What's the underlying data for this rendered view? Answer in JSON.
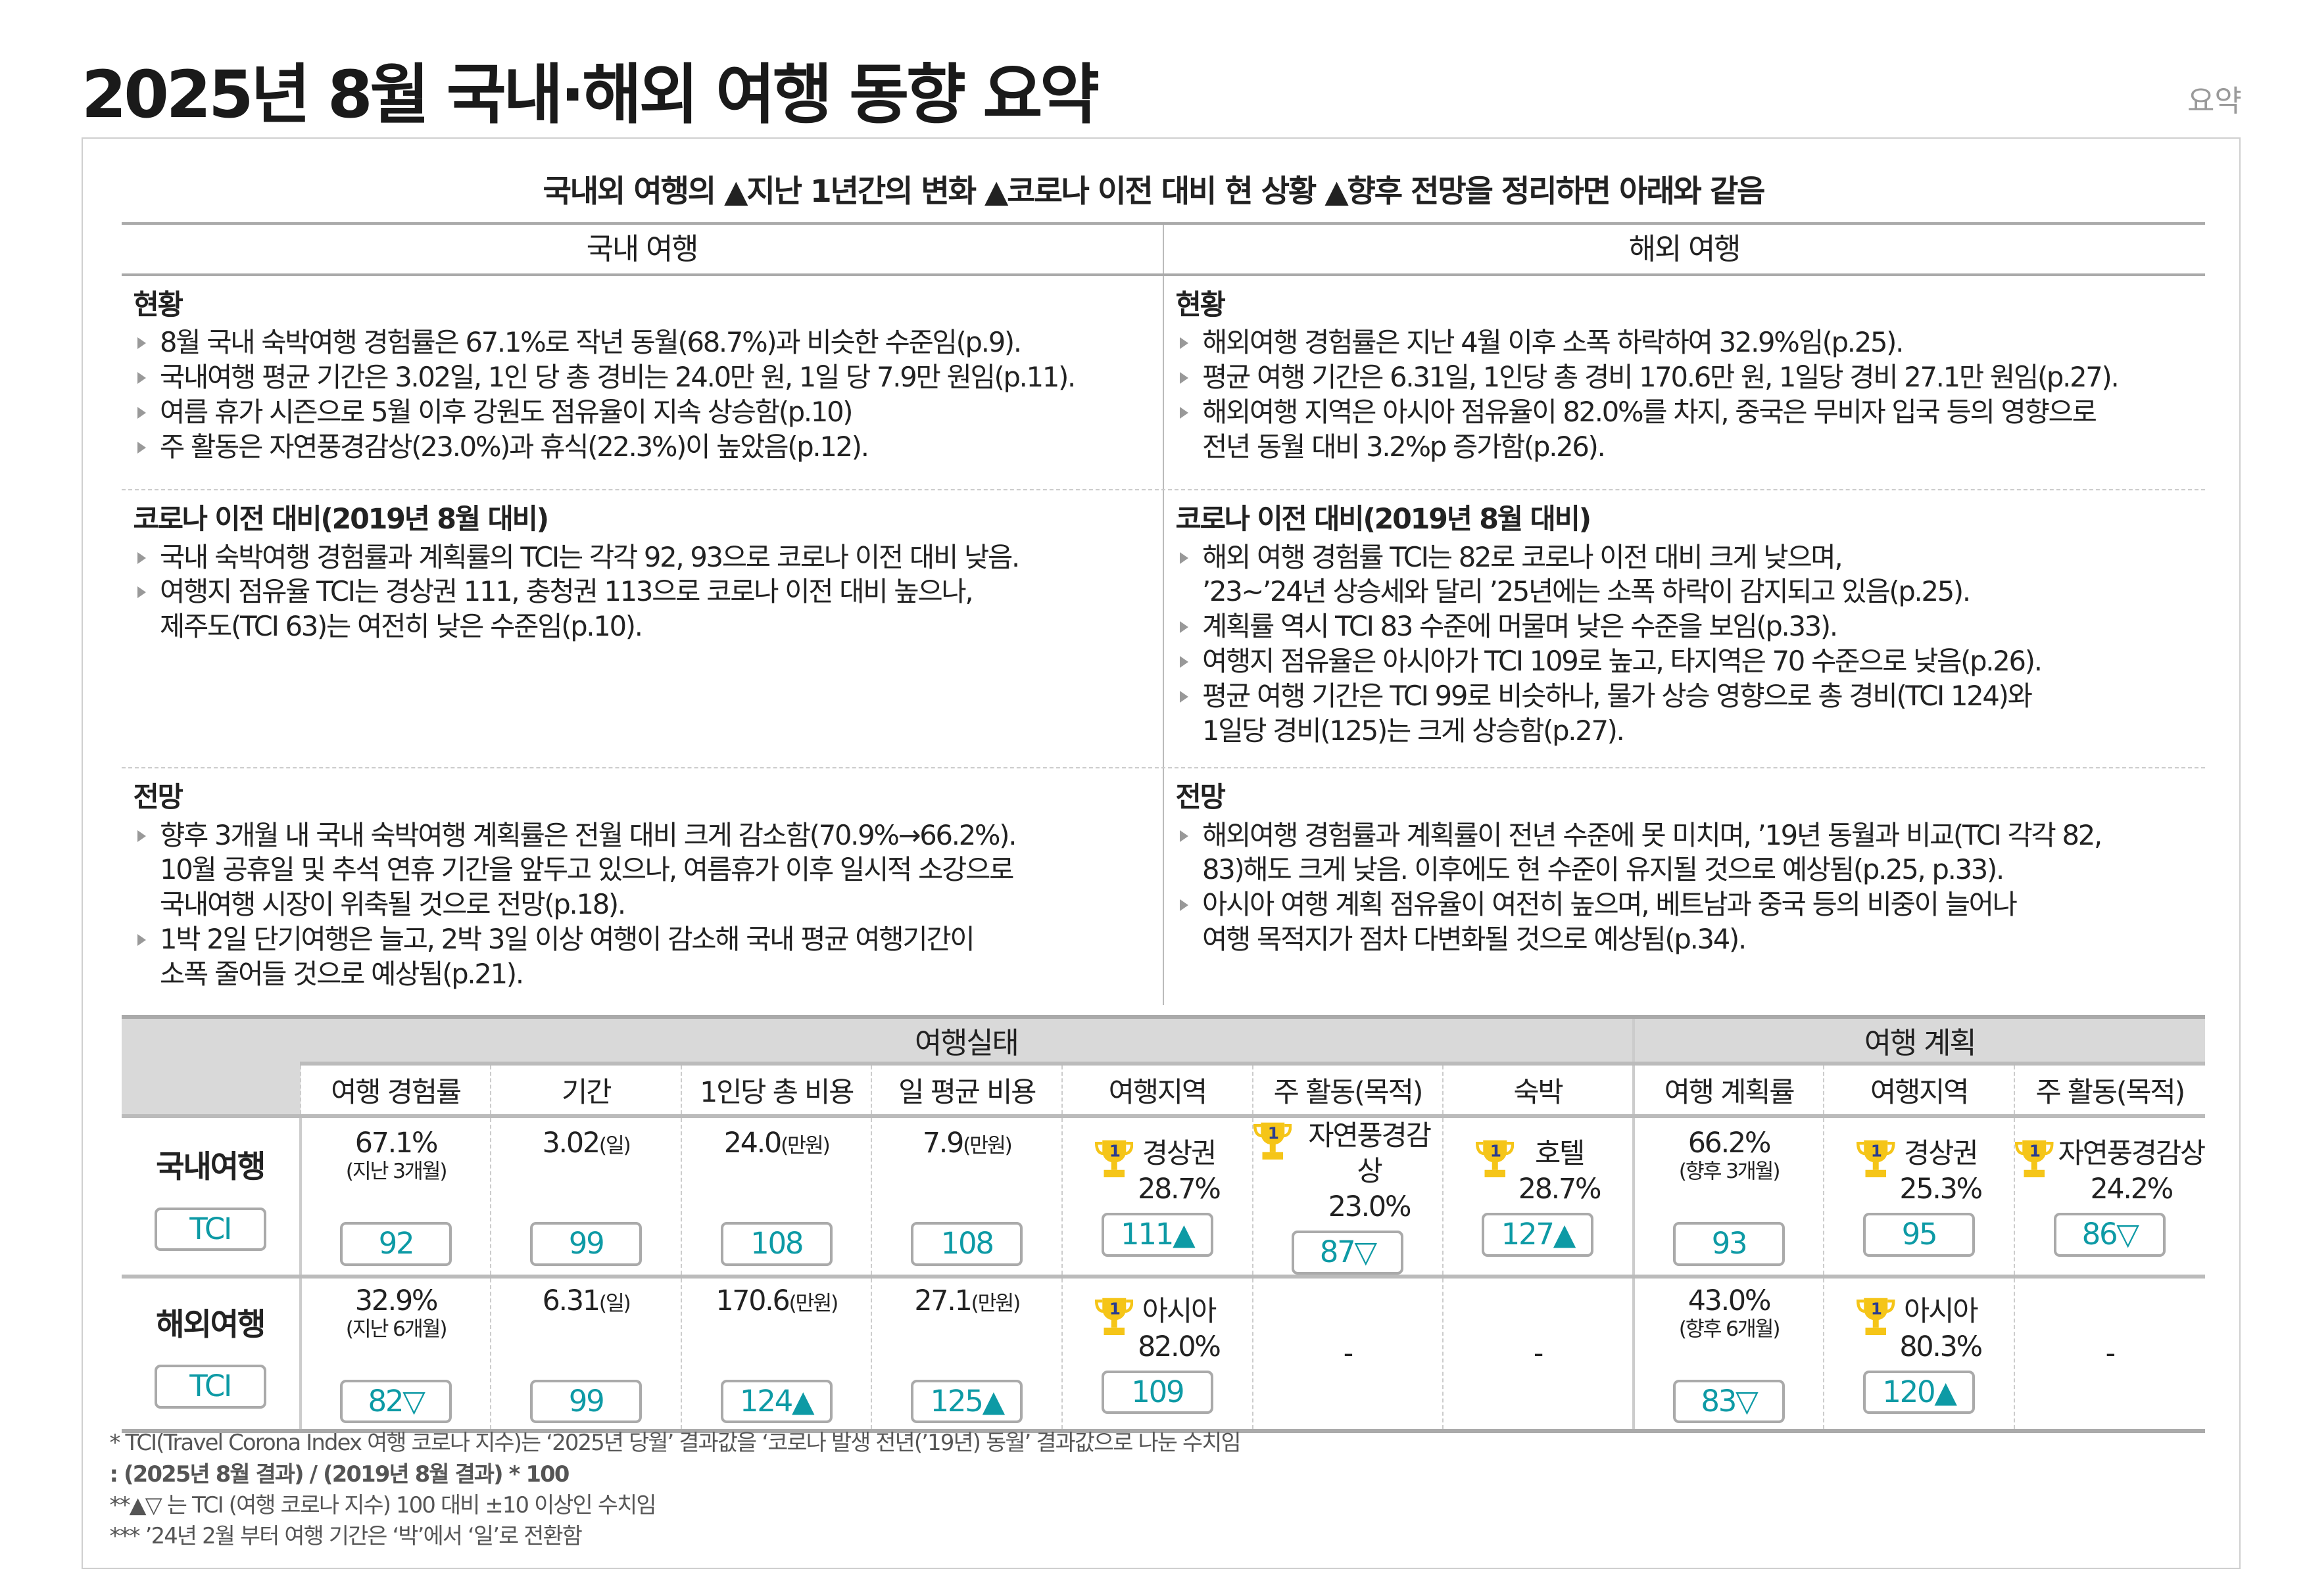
{
  "title": "2025년 8월 국내·해외 여행 동향 요약",
  "tag": "요약",
  "subtitle": "국내외 여행의 ▲지난 1년간의 변화 ▲코로나 이전 대비 현 상황 ▲향후 전망을 정리하면 아래와 같음",
  "compare": {
    "headers": [
      "국내 여행",
      "해외 여행"
    ],
    "sections": [
      {
        "domestic": {
          "heading": "현황",
          "bullets": [
            "8월 국내 숙박여행 경험률은 67.1%로 작년 동월(68.7%)과 비슷한 수준임(p.9).",
            "국내여행 평균 기간은 3.02일, 1인 당 총 경비는 24.0만 원, 1일 당 7.9만 원임(p.11).",
            "여름 휴가 시즌으로 5월 이후 강원도 점유율이 지속 상승함(p.10)",
            "주 활동은 자연풍경감상(23.0%)과 휴식(22.3%)이 높았음(p.12)."
          ]
        },
        "overseas": {
          "heading": "현황",
          "bullets": [
            "해외여행 경험률은 지난 4월 이후 소폭 하락하여 32.9%임(p.25).",
            "평균 여행 기간은 6.31일, 1인당 총 경비 170.6만 원, 1일당 경비 27.1만 원임(p.27).",
            "해외여행 지역은 아시아 점유율이 82.0%를 차지, 중국은 무비자 입국 등의 영향으로\n전년 동월 대비 3.2%p 증가함(p.26)."
          ]
        }
      },
      {
        "domestic": {
          "heading": "코로나 이전 대비(2019년 8월 대비)",
          "bullets": [
            "국내 숙박여행 경험률과 계획률의 TCI는 각각 92, 93으로 코로나 이전 대비 낮음.",
            "여행지 점유율 TCI는 경상권 111, 충청권 113으로 코로나 이전 대비 높으나,\n제주도(TCI 63)는 여전히 낮은 수준임(p.10)."
          ]
        },
        "overseas": {
          "heading": "코로나 이전 대비(2019년 8월 대비)",
          "bullets": [
            "해외 여행 경험률 TCI는 82로 코로나 이전 대비 크게 낮으며,\n’23~’24년 상승세와 달리 ’25년에는 소폭 하락이 감지되고 있음(p.25).",
            "계획률 역시 TCI 83 수준에 머물며 낮은 수준을 보임(p.33).",
            "여행지 점유율은 아시아가 TCI 109로 높고, 타지역은 70 수준으로 낮음(p.26).",
            "평균 여행 기간은 TCI 99로 비슷하나, 물가 상승 영향으로 총 경비(TCI 124)와\n1일당 경비(125)는 크게 상승함(p.27)."
          ]
        }
      },
      {
        "domestic": {
          "heading": "전망",
          "bullets": [
            "향후 3개월 내 국내 숙박여행 계획률은 전월 대비 크게 감소함(70.9%→66.2%).\n10월 공휴일 및 추석 연휴 기간을 앞두고 있으나, 여름휴가 이후 일시적 소강으로\n국내여행 시장이 위축될 것으로 전망(p.18).",
            "1박 2일 단기여행은 늘고, 2박 3일 이상 여행이 감소해 국내 평균 여행기간이\n소폭 줄어들 것으로 예상됨(p.21)."
          ]
        },
        "overseas": {
          "heading": "전망",
          "bullets": [
            "해외여행 경험률과 계획률이 전년 수준에 못 미치며, ’19년 동월과 비교(TCI 각각 82,\n83)해도 크게 낮음. 이후에도 현 수준이 유지될 것으로 예상됨(p.25, p.33).",
            "아시아 여행 계획 점유율이 여전히 높으며, 베트남과 중국 등의 비중이 늘어나\n여행 목적지가  점차 다변화될 것으로 예상됨(p.34)."
          ]
        }
      }
    ]
  },
  "summary": {
    "groups": [
      "여행실태",
      "여행 계획"
    ],
    "columns": [
      "여행 경험률",
      "기간",
      "1인당 총 비용",
      "일 평균 비용",
      "여행지역",
      "주 활동(목적)",
      "숙박",
      "여행 계획률",
      "여행지역",
      "주 활동(목적)"
    ],
    "rows": [
      {
        "label": "국내여행",
        "tci_label": "TCI",
        "cells": [
          {
            "value": "67.1%",
            "note": "(지난 3개월)",
            "tci": "92"
          },
          {
            "value": "3.02",
            "unit": "(일)",
            "tci": "99"
          },
          {
            "value": "24.0",
            "unit": "(만원)",
            "tci": "108"
          },
          {
            "value": "7.9",
            "unit": "(만원)",
            "tci": "108"
          },
          {
            "rank1": "경상권",
            "value": "28.7%",
            "tci": "111▲"
          },
          {
            "rank1": "자연풍경감상",
            "value": "23.0%",
            "tci": "87▽"
          },
          {
            "rank1": "호텔",
            "value": "28.7%",
            "tci": "127▲"
          },
          {
            "value": "66.2%",
            "note": "(향후 3개월)",
            "tci": "93"
          },
          {
            "rank1": "경상권",
            "value": "25.3%",
            "tci": "95"
          },
          {
            "rank1": "자연풍경감상",
            "value": "24.2%",
            "tci": "86▽"
          }
        ]
      },
      {
        "label": "해외여행",
        "tci_label": "TCI",
        "cells": [
          {
            "value": "32.9%",
            "note": "(지난 6개월)",
            "tci": "82▽"
          },
          {
            "value": "6.31",
            "unit": "(일)",
            "tci": "99"
          },
          {
            "value": "170.6",
            "unit": "(만원)",
            "tci": "124▲"
          },
          {
            "value": "27.1",
            "unit": "(만원)",
            "tci": "125▲"
          },
          {
            "rank1": "아시아",
            "value": "82.0%",
            "tci": "109"
          },
          {
            "dash": "-"
          },
          {
            "dash": "-"
          },
          {
            "value": "43.0%",
            "note": "(향후 6개월)",
            "tci": "83▽"
          },
          {
            "rank1": "아시아",
            "value": "80.3%",
            "tci": "120▲"
          },
          {
            "dash": "-"
          }
        ]
      }
    ],
    "rank_badge": "1"
  },
  "footnotes": [
    "* TCI(Travel Corona Index 여행 코로나 지수)는 ‘2025년 당월’ 결과값을 ‘코로나 발생 전년(’19년) 동월’ 결과값으로 나눈 수치임",
    " : (2025년 8월 결과) / (2019년  8월 결과) * 100",
    "**▲▽ 는 TCI (여행 코로나 지수) 100 대비 ±10 이상인 수치임",
    "*** ’24년 2월 부터 여행 기간은 ‘박’에서  ‘일’로 전환함"
  ],
  "colors": {
    "tci": "#0d9aa5",
    "header_bg": "#d9d9d9",
    "trophy": "#f5c518"
  }
}
